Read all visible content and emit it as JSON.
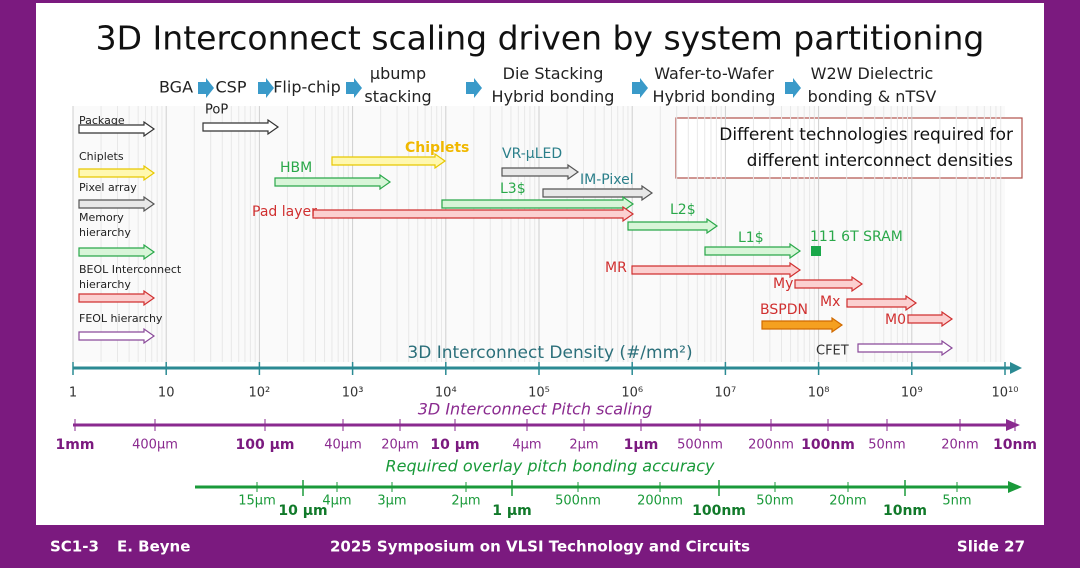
{
  "header": {
    "title": "3D Interconnect scaling driven by system partitioning"
  },
  "process_steps": [
    "BGA",
    "CSP",
    "Flip-chip",
    "µbump stacking",
    "Die Stacking Hybrid bonding",
    "Wafer-to-Wafer Hybrid bonding",
    "W2W Dielectric bonding & nTSV"
  ],
  "legend": [
    "Package",
    "Chiplets",
    "Pixel array",
    "Memory hierarchy",
    "BEOL Interconnect hierarchy",
    "FEOL hierarchy"
  ],
  "note": [
    "Different technologies required for",
    "different interconnect densities"
  ],
  "arrows": [
    "PoP",
    "Chiplets",
    "HBM",
    "VR-µLED",
    "IM-Pixel",
    "L3$",
    "Pad layer",
    "L2$",
    "L1$",
    "111 6T SRAM",
    "MR",
    "My",
    "Mx",
    "BSPDN",
    "M0",
    "CFET"
  ],
  "density_axis": {
    "title": "3D Interconnect Density (#/mm²)",
    "ticks": [
      "1",
      "10",
      "10²",
      "10³",
      "10⁴",
      "10⁵",
      "10⁶",
      "10⁷",
      "10⁸",
      "10⁹",
      "10¹⁰"
    ]
  },
  "pitch_axis": {
    "title": "3D Interconnect Pitch scaling",
    "ticks": [
      "1mm",
      "400µm",
      "100 µm",
      "40µm",
      "20µm",
      "10 µm",
      "4µm",
      "2µm",
      "1µm",
      "500nm",
      "200nm",
      "100nm",
      "50nm",
      "20nm",
      "10nm"
    ]
  },
  "overlay_axis": {
    "title": "Required overlay pitch bonding accuracy",
    "ticks": [
      "15µm",
      "10 µm",
      "4µm",
      "3µm",
      "2µm",
      "1 µm",
      "500nm",
      "200nm",
      "100nm",
      "50nm",
      "20nm",
      "10nm",
      "5nm"
    ]
  },
  "footer": {
    "session": "SC1-3",
    "author": "E. Beyne",
    "event": "2025 Symposium on VLSI Technology and Circuits",
    "slide": "Slide 27"
  }
}
